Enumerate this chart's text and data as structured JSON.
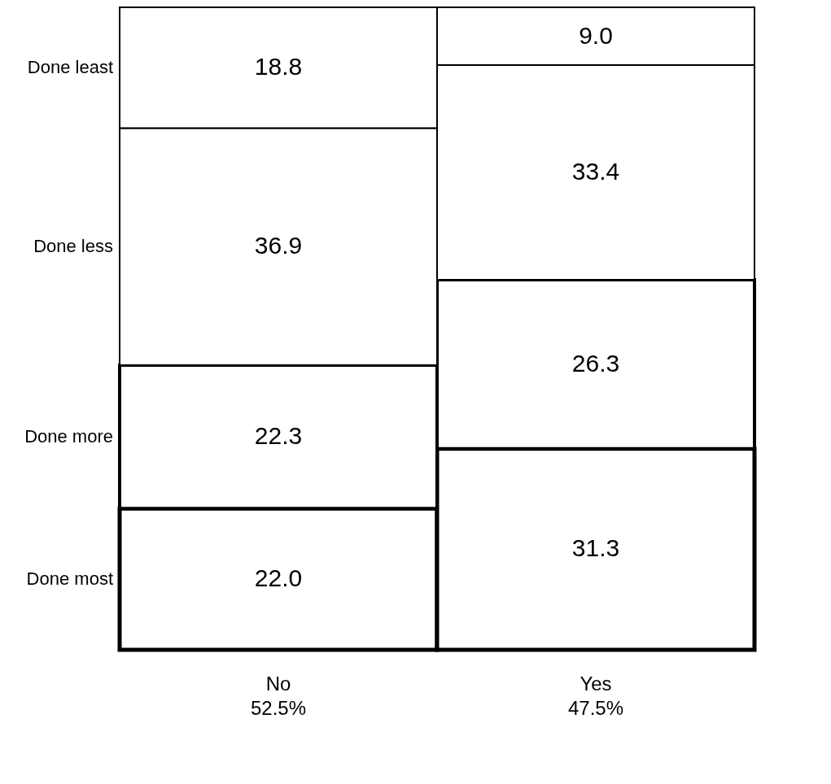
{
  "chart_data": {
    "type": "bar",
    "stacked": true,
    "categories": [
      "No\n52.5%",
      "Yes\n47.5%"
    ],
    "ylim": [
      0,
      100
    ],
    "tick_labels": "x",
    "series": [
      {
        "name": "Done most",
        "color": "#ffffff",
        "line_style": "solid",
        "values": [
          22.0,
          31.3
        ],
        "value_labels": [
          "22.0",
          "31.3"
        ]
      },
      {
        "name": "Done more",
        "color": "#ffffff",
        "line_style": "dashed",
        "values": [
          22.3,
          26.3
        ],
        "value_labels": [
          "22.3",
          "26.3"
        ]
      },
      {
        "name": "Done less",
        "color": "#ffffff",
        "line_style": "dotted",
        "values": [
          36.9,
          33.4
        ],
        "value_labels": [
          "36.9",
          "33.4"
        ]
      },
      {
        "name": "Done least",
        "color": "#ffffff",
        "line_style": "solid",
        "values": [
          18.8,
          9.0
        ],
        "value_labels": [
          "18.8",
          "9.0"
        ]
      }
    ]
  }
}
